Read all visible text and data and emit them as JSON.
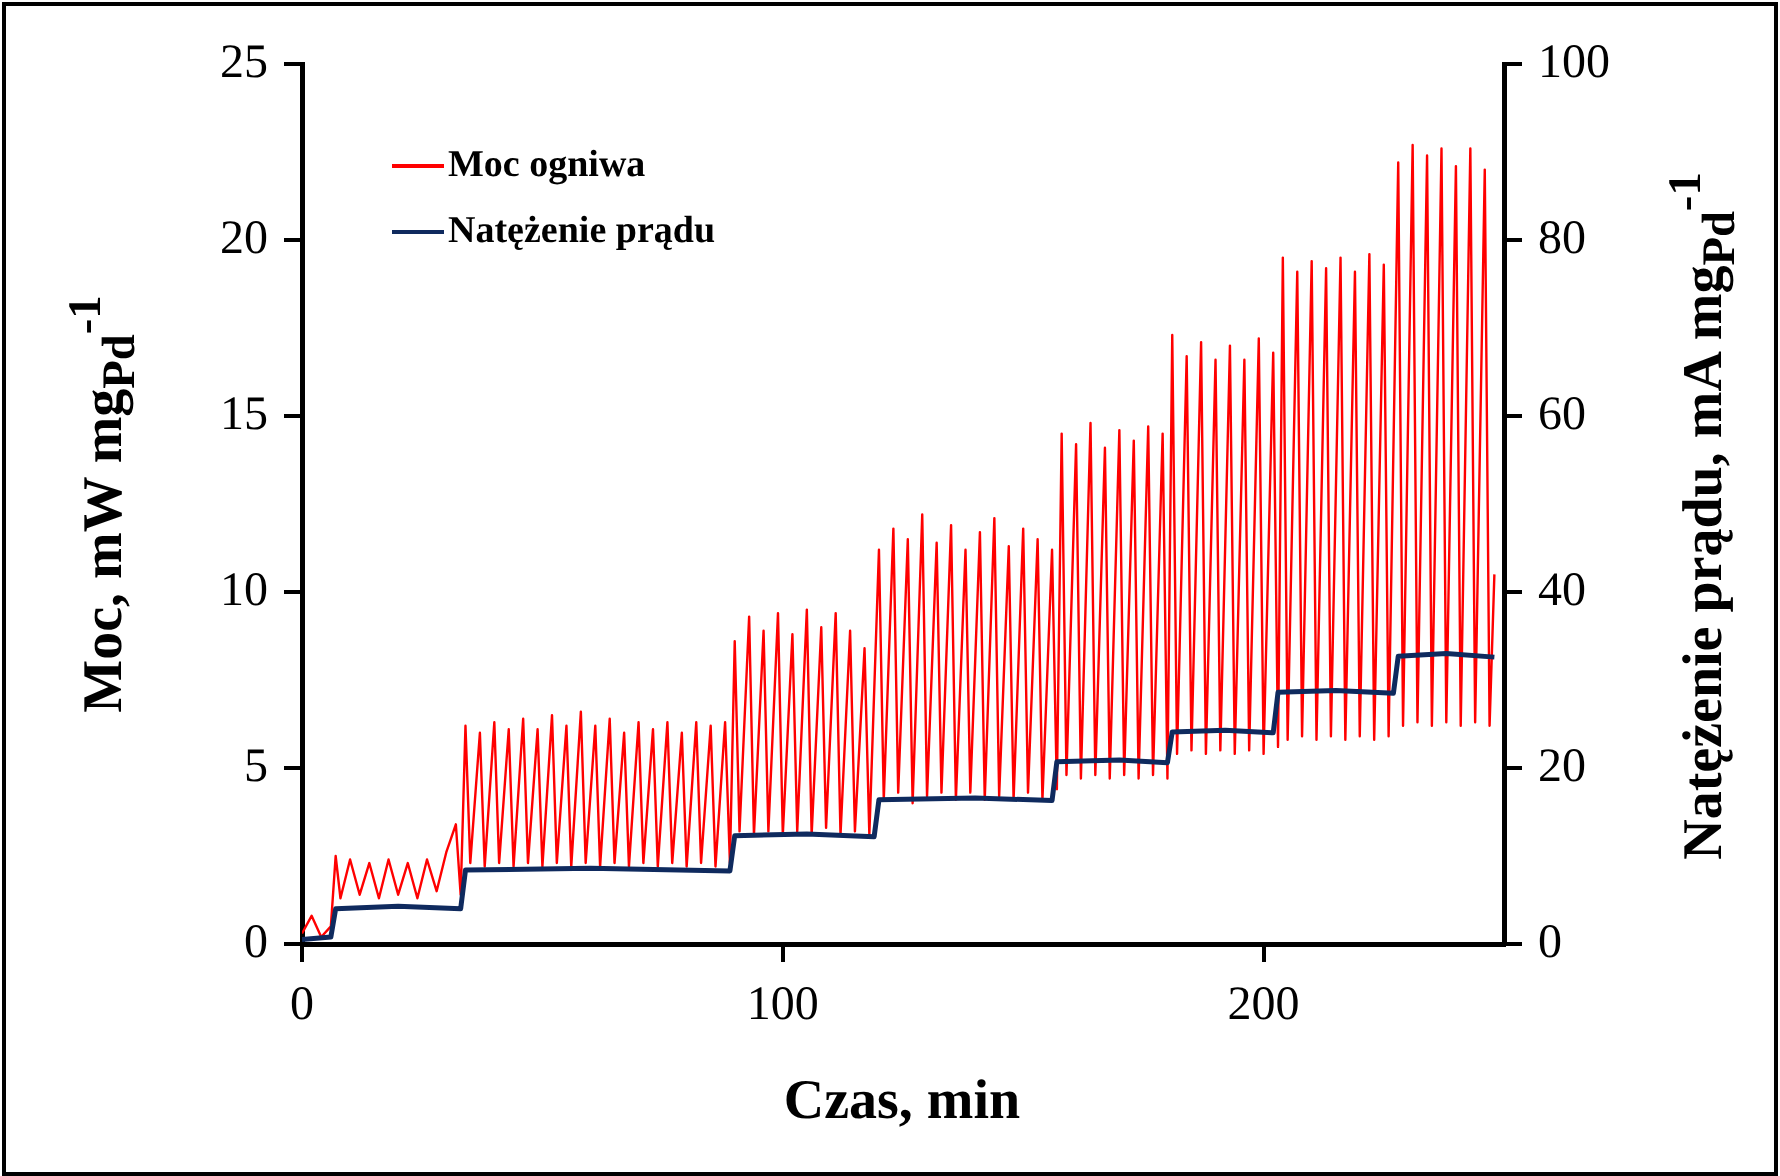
{
  "chart_data": {
    "type": "line",
    "xlabel": "Czas, min",
    "ylabel": "Moc, mW mg$_{Pd}$$^{-1}$",
    "y2label": "Natężenie prądu, mA mg$_{Pd}$$^{-1}$",
    "xlim": [
      0,
      250
    ],
    "xticks": [
      0,
      100,
      200
    ],
    "ylim": [
      0,
      25
    ],
    "yticks": [
      0,
      5,
      10,
      15,
      20,
      25
    ],
    "y2lim": [
      0,
      100
    ],
    "y2ticks": [
      0,
      20,
      40,
      60,
      80,
      100
    ],
    "grid": false,
    "legend": "top left",
    "marker": "none",
    "line_style": "solid",
    "series": [
      {
        "name": "Moc ogniwa",
        "color": "#ff0000",
        "x": [
          0,
          2,
          4,
          6,
          7,
          8,
          10,
          12,
          14,
          16,
          18,
          20,
          22,
          24,
          26,
          28,
          30,
          32,
          33,
          34,
          35,
          37,
          38,
          40,
          41,
          43,
          44,
          46,
          47,
          49,
          50,
          52,
          53,
          55,
          56,
          58,
          59,
          61,
          62,
          64,
          65,
          67,
          68,
          70,
          71,
          73,
          74,
          76,
          77,
          79,
          80,
          82,
          83,
          85,
          86,
          88,
          89,
          90,
          91,
          93,
          94,
          96,
          97,
          99,
          100,
          102,
          103,
          105,
          106,
          108,
          109,
          111,
          112,
          114,
          115,
          117,
          118,
          120,
          121,
          123,
          124,
          126,
          127,
          129,
          130,
          132,
          133,
          135,
          136,
          138,
          139,
          141,
          142,
          144,
          145,
          147,
          148,
          150,
          151,
          153,
          154,
          156,
          157,
          158,
          159,
          161,
          162,
          164,
          165,
          167,
          168,
          170,
          171,
          173,
          174,
          176,
          177,
          179,
          180,
          181,
          182,
          184,
          185,
          187,
          188,
          190,
          191,
          193,
          194,
          196,
          197,
          199,
          200,
          202,
          203,
          204,
          205,
          207,
          208,
          210,
          211,
          213,
          214,
          216,
          217,
          219,
          220,
          222,
          223,
          225,
          226,
          228,
          229,
          231,
          232,
          234,
          235,
          237,
          238,
          240,
          241,
          243,
          244,
          246,
          247,
          248
        ],
        "values": [
          0.3,
          0.8,
          0.2,
          0.5,
          2.5,
          1.3,
          2.4,
          1.4,
          2.3,
          1.3,
          2.4,
          1.4,
          2.3,
          1.3,
          2.4,
          1.5,
          2.6,
          3.4,
          1.4,
          6.2,
          2.3,
          6.0,
          2.2,
          6.3,
          2.3,
          6.1,
          2.2,
          6.4,
          2.3,
          6.1,
          2.2,
          6.5,
          2.3,
          6.2,
          2.2,
          6.6,
          2.3,
          6.2,
          2.2,
          6.4,
          2.3,
          6.0,
          2.2,
          6.3,
          2.3,
          6.1,
          2.2,
          6.3,
          2.3,
          6.0,
          2.2,
          6.3,
          2.3,
          6.2,
          2.2,
          6.3,
          2.3,
          8.6,
          3.2,
          9.3,
          3.1,
          8.9,
          3.2,
          9.4,
          3.1,
          8.8,
          3.2,
          9.5,
          3.1,
          9.0,
          3.3,
          9.4,
          3.1,
          8.9,
          3.2,
          8.4,
          3.1,
          11.2,
          4.1,
          11.8,
          4.3,
          11.5,
          4.0,
          12.2,
          4.2,
          11.4,
          4.3,
          11.9,
          4.1,
          11.2,
          4.3,
          11.7,
          4.1,
          12.1,
          4.2,
          11.3,
          4.1,
          11.8,
          4.3,
          11.5,
          4.1,
          11.2,
          4.4,
          14.5,
          4.8,
          14.2,
          4.7,
          14.8,
          4.8,
          14.1,
          4.7,
          14.6,
          4.8,
          14.3,
          4.7,
          14.7,
          4.8,
          14.5,
          4.7,
          17.3,
          5.4,
          16.7,
          5.5,
          17.1,
          5.4,
          16.6,
          5.5,
          17.0,
          5.4,
          16.6,
          5.5,
          17.2,
          5.4,
          16.8,
          5.6,
          19.5,
          5.8,
          19.1,
          5.9,
          19.4,
          5.8,
          19.2,
          5.9,
          19.5,
          5.8,
          19.1,
          5.9,
          19.6,
          5.8,
          19.3,
          5.9,
          22.2,
          6.2,
          22.7,
          6.3,
          22.4,
          6.2,
          22.6,
          6.3,
          22.1,
          6.2,
          22.6,
          6.3,
          22.0,
          6.2,
          10.5
        ]
      },
      {
        "name": "Natężenie prądu",
        "color": "#0f2a5e",
        "axis": "y2",
        "x": [
          0,
          6,
          7,
          20,
          33,
          34,
          60,
          89,
          90,
          105,
          119,
          120,
          140,
          156,
          157,
          170,
          180,
          181,
          192,
          202,
          203,
          215,
          227,
          228,
          238,
          248
        ],
        "values": [
          0.5,
          0.8,
          4.0,
          4.3,
          4.0,
          8.4,
          8.6,
          8.3,
          12.3,
          12.5,
          12.2,
          16.4,
          16.6,
          16.3,
          20.7,
          20.9,
          20.6,
          24.1,
          24.3,
          24.0,
          28.6,
          28.8,
          28.5,
          32.7,
          33.0,
          32.6
        ]
      }
    ]
  }
}
